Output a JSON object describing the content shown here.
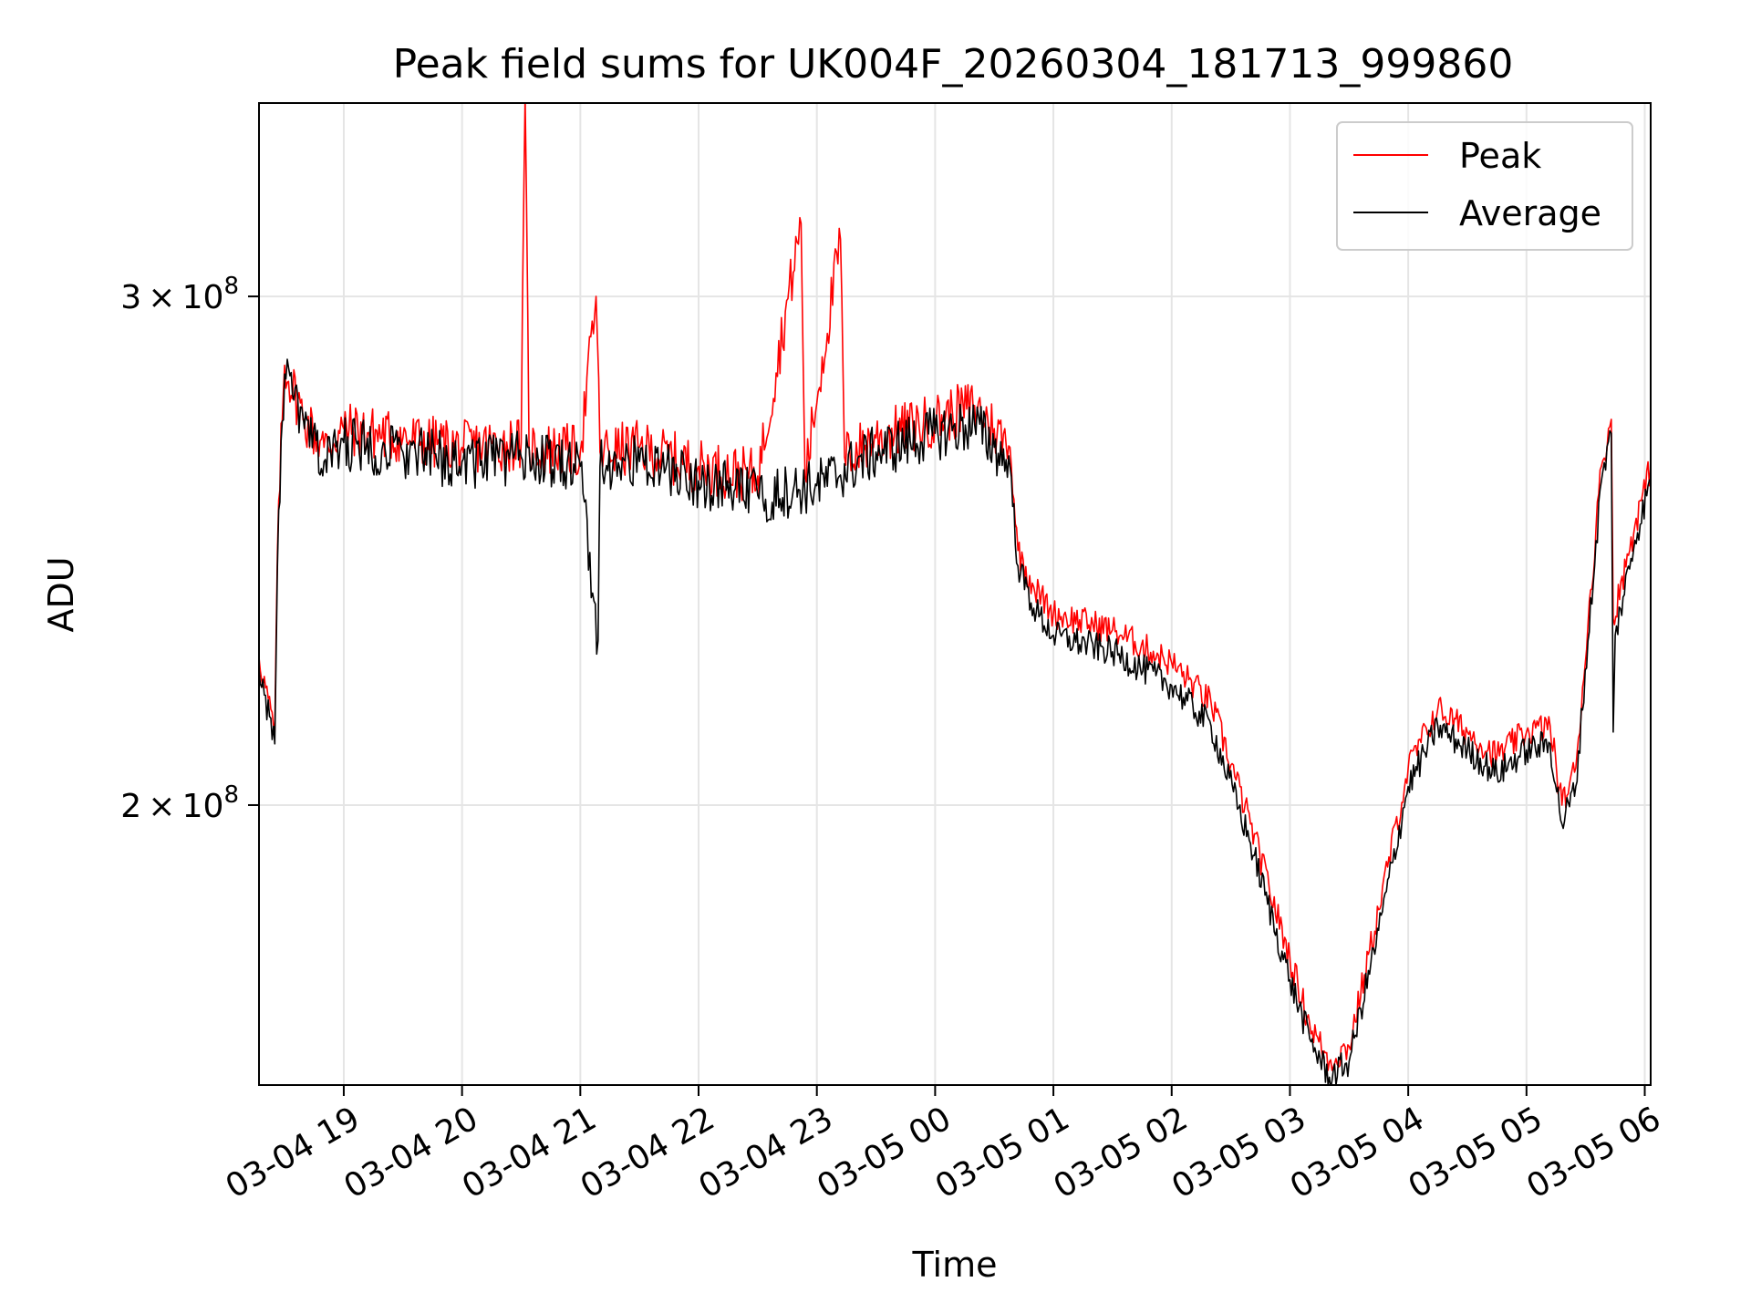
{
  "chart_data": {
    "type": "line",
    "title": "Peak field sums for UK004F_20260304_181713_999860",
    "xlabel": "Time",
    "ylabel": "ADU",
    "x_start": "03-04 18:17:13",
    "x_end": "03-05 06:03",
    "xlim": [
      "03-04 18:17",
      "03-05 06:03"
    ],
    "ylim": [
      160000000,
      350000000
    ],
    "yscale": "log",
    "grid": true,
    "legend": "top-right",
    "x_ticks": [
      "03-04 19",
      "03-04 20",
      "03-04 21",
      "03-04 22",
      "03-04 23",
      "03-05 00",
      "03-05 01",
      "03-05 02",
      "03-05 03",
      "03-05 04",
      "03-05 05",
      "03-05 06"
    ],
    "y_ticks": [
      {
        "value": 300000000,
        "mantissa": "3",
        "times": "×",
        "base": "10",
        "exp": "8"
      },
      {
        "value": 200000000,
        "mantissa": "2",
        "times": "×",
        "base": "10",
        "exp": "8"
      }
    ],
    "series": [
      {
        "name": "Peak",
        "color": "#ff0000",
        "points": [
          [
            "03-04 18:17",
            225000000.0
          ],
          [
            "03-04 18:25",
            212000000.0
          ],
          [
            "03-04 18:27",
            255000000.0
          ],
          [
            "03-04 18:30",
            284000000.0
          ],
          [
            "03-04 18:40",
            272000000.0
          ],
          [
            "03-04 18:50",
            266000000.0
          ],
          [
            "03-04 19:00",
            270000000.0
          ],
          [
            "03-04 19:30",
            268000000.0
          ],
          [
            "03-04 20:00",
            266000000.0
          ],
          [
            "03-04 20:30",
            267000000.0
          ],
          [
            "03-04 20:32",
            352000000.0
          ],
          [
            "03-04 20:34",
            266000000.0
          ],
          [
            "03-04 21:00",
            265000000.0
          ],
          [
            "03-04 21:08",
            300000000.0
          ],
          [
            "03-04 21:10",
            265000000.0
          ],
          [
            "03-04 21:30",
            266000000.0
          ],
          [
            "03-04 22:00",
            262000000.0
          ],
          [
            "03-04 22:30",
            260000000.0
          ],
          [
            "03-04 22:52",
            318000000.0
          ],
          [
            "03-04 22:54",
            260000000.0
          ],
          [
            "03-04 23:12",
            314000000.0
          ],
          [
            "03-04 23:14",
            264000000.0
          ],
          [
            "03-04 23:30",
            268000000.0
          ],
          [
            "03-05 00:00",
            272000000.0
          ],
          [
            "03-05 00:20",
            275000000.0
          ],
          [
            "03-05 00:30",
            270000000.0
          ],
          [
            "03-05 00:38",
            266000000.0
          ],
          [
            "03-05 00:42",
            245000000.0
          ],
          [
            "03-05 00:50",
            238000000.0
          ],
          [
            "03-05 01:00",
            233000000.0
          ],
          [
            "03-05 01:30",
            230000000.0
          ],
          [
            "03-05 02:00",
            224000000.0
          ],
          [
            "03-05 02:20",
            217000000.0
          ],
          [
            "03-05 02:40",
            197000000.0
          ],
          [
            "03-05 03:00",
            177000000.0
          ],
          [
            "03-05 03:10",
            168000000.0
          ],
          [
            "03-05 03:20",
            163000000.0
          ],
          [
            "03-05 03:30",
            165000000.0
          ],
          [
            "03-05 03:45",
            184000000.0
          ],
          [
            "03-05 04:00",
            206000000.0
          ],
          [
            "03-05 04:15",
            216000000.0
          ],
          [
            "03-05 04:30",
            212000000.0
          ],
          [
            "03-05 04:45",
            208000000.0
          ],
          [
            "03-05 05:00",
            212000000.0
          ],
          [
            "03-05 05:12",
            213000000.0
          ],
          [
            "03-05 05:18",
            200000000.0
          ],
          [
            "03-05 05:25",
            206000000.0
          ],
          [
            "03-05 05:38",
            262000000.0
          ],
          [
            "03-05 05:43",
            272000000.0
          ],
          [
            "03-05 05:44",
            232000000.0
          ],
          [
            "03-05 05:55",
            250000000.0
          ],
          [
            "03-05 06:03",
            262000000.0
          ]
        ]
      },
      {
        "name": "Average",
        "color": "#000000",
        "points": [
          [
            "03-04 18:17",
            223000000.0
          ],
          [
            "03-04 18:25",
            210000000.0
          ],
          [
            "03-04 18:27",
            253000000.0
          ],
          [
            "03-04 18:30",
            282000000.0
          ],
          [
            "03-04 18:40",
            270000000.0
          ],
          [
            "03-04 18:50",
            263000000.0
          ],
          [
            "03-04 19:00",
            267000000.0
          ],
          [
            "03-04 19:30",
            265000000.0
          ],
          [
            "03-04 20:00",
            263000000.0
          ],
          [
            "03-04 20:30",
            264000000.0
          ],
          [
            "03-04 21:00",
            262000000.0
          ],
          [
            "03-04 21:09",
            228000000.0
          ],
          [
            "03-04 21:10",
            262000000.0
          ],
          [
            "03-04 21:30",
            263000000.0
          ],
          [
            "03-04 22:00",
            259000000.0
          ],
          [
            "03-04 22:30",
            256000000.0
          ],
          [
            "03-04 23:00",
            258000000.0
          ],
          [
            "03-04 23:30",
            265000000.0
          ],
          [
            "03-05 00:00",
            269000000.0
          ],
          [
            "03-05 00:20",
            271000000.0
          ],
          [
            "03-05 00:30",
            266000000.0
          ],
          [
            "03-05 00:38",
            262000000.0
          ],
          [
            "03-05 00:42",
            242000000.0
          ],
          [
            "03-05 00:50",
            234000000.0
          ],
          [
            "03-05 01:00",
            229000000.0
          ],
          [
            "03-05 01:30",
            226000000.0
          ],
          [
            "03-05 02:00",
            220000000.0
          ],
          [
            "03-05 02:20",
            213000000.0
          ],
          [
            "03-05 02:40",
            194000000.0
          ],
          [
            "03-05 03:00",
            174000000.0
          ],
          [
            "03-05 03:10",
            166000000.0
          ],
          [
            "03-05 03:20",
            161000000.0
          ],
          [
            "03-05 03:30",
            163000000.0
          ],
          [
            "03-05 03:45",
            181000000.0
          ],
          [
            "03-05 04:00",
            203000000.0
          ],
          [
            "03-05 04:15",
            213000000.0
          ],
          [
            "03-05 04:30",
            209000000.0
          ],
          [
            "03-05 04:45",
            205000000.0
          ],
          [
            "03-05 05:00",
            209000000.0
          ],
          [
            "03-05 05:12",
            210000000.0
          ],
          [
            "03-05 05:18",
            197000000.0
          ],
          [
            "03-05 05:25",
            203000000.0
          ],
          [
            "03-05 05:38",
            259000000.0
          ],
          [
            "03-05 05:43",
            269000000.0
          ],
          [
            "03-05 05:44",
            212000000.0
          ],
          [
            "03-05 05:45",
            229000000.0
          ],
          [
            "03-05 05:55",
            247000000.0
          ],
          [
            "03-05 06:03",
            259000000.0
          ]
        ]
      }
    ]
  }
}
